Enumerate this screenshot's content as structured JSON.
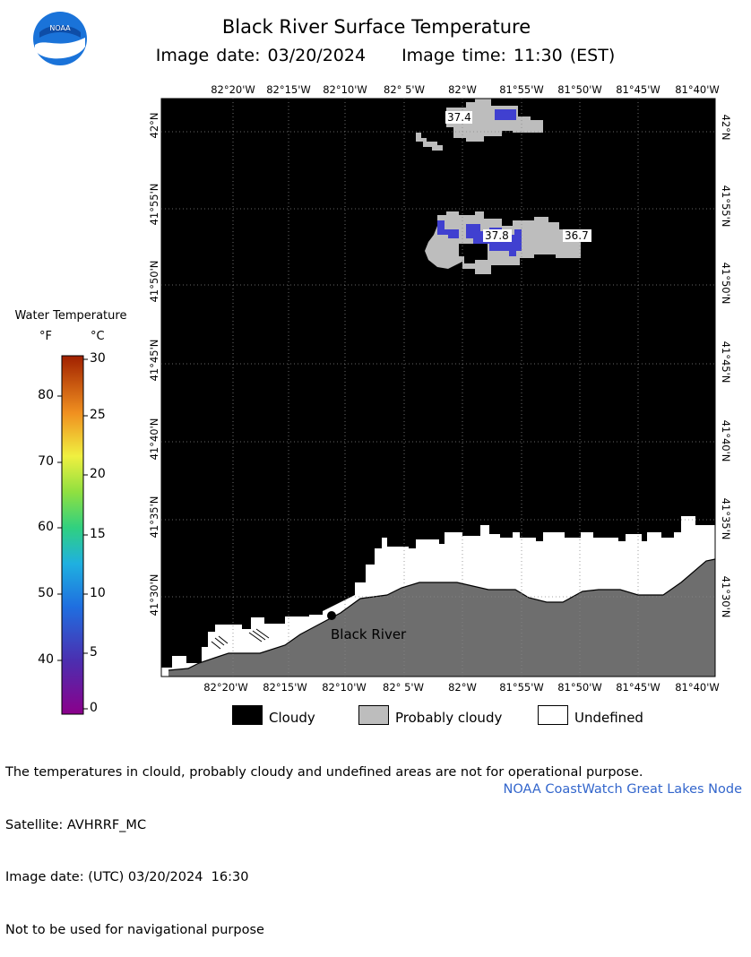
{
  "header": {
    "title": "Black River Surface Temperature",
    "image_date": "Image date: 03/20/2024",
    "image_time": "Image time: 11:30 (EST)",
    "logo_text": "NOAA"
  },
  "map": {
    "lon_ticks": [
      "82°20'W",
      "82°15'W",
      "82°10'W",
      "82° 5'W",
      "82°W",
      "81°55'W",
      "81°50'W",
      "81°45'W",
      "81°40'W"
    ],
    "lat_ticks": [
      "42°N",
      "41°55'N",
      "41°50'N",
      "41°45'N",
      "41°40'N",
      "41°35'N",
      "41°30'N"
    ],
    "place_label": "Black River",
    "temperature_labels": [
      "37.4",
      "37.8",
      "36.7"
    ],
    "colors": {
      "cloud": "#000000",
      "probably_cloudy": "#bdbdbd",
      "undefined": "#ffffff",
      "land": "#6e6e6e",
      "water_cold": "#4040d0"
    }
  },
  "legend": {
    "title": "Water Temperature",
    "unit_f": "°F",
    "unit_c": "°C",
    "f_ticks": [
      "80",
      "70",
      "60",
      "50",
      "40"
    ],
    "c_ticks": [
      "30",
      "25",
      "20",
      "15",
      "10",
      "5",
      "0"
    ]
  },
  "key": {
    "cloudy": "Cloudy",
    "probably_cloudy": "Probably cloudy",
    "undefined": "Undefined"
  },
  "footer": {
    "lines": [
      "The temperatures in clould, probably cloudy and undefined areas are not for operational purpose.",
      "Satellite: AVHRRF_MC",
      "Image date: (UTC) 03/20/2024  16:30",
      "Not to be used for navigational purpose"
    ],
    "credit": "NOAA CoastWatch Great Lakes Node"
  }
}
